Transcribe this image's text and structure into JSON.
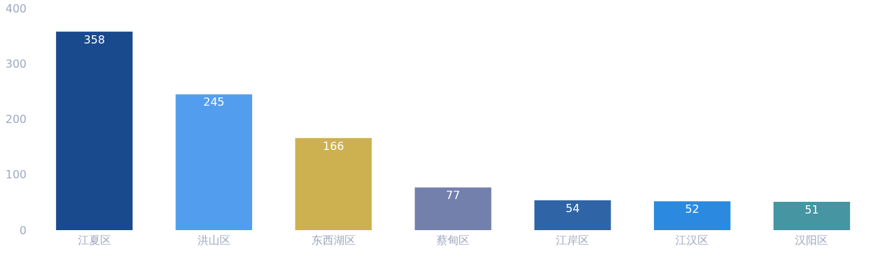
{
  "chart_data": {
    "type": "bar",
    "categories": [
      "江夏区",
      "洪山区",
      "东西湖区",
      "蔡甸区",
      "江岸区",
      "江汉区",
      "汉阳区"
    ],
    "values": [
      358,
      245,
      166,
      77,
      54,
      52,
      51
    ],
    "colors": [
      "#1a4a8e",
      "#539dee",
      "#cdb04f",
      "#7480ac",
      "#2f65a6",
      "#2b8ae0",
      "#4695a3"
    ],
    "ylim": [
      0,
      400
    ],
    "yticks": [
      0,
      100,
      200,
      300,
      400
    ],
    "grid": false,
    "data_labels": true
  }
}
